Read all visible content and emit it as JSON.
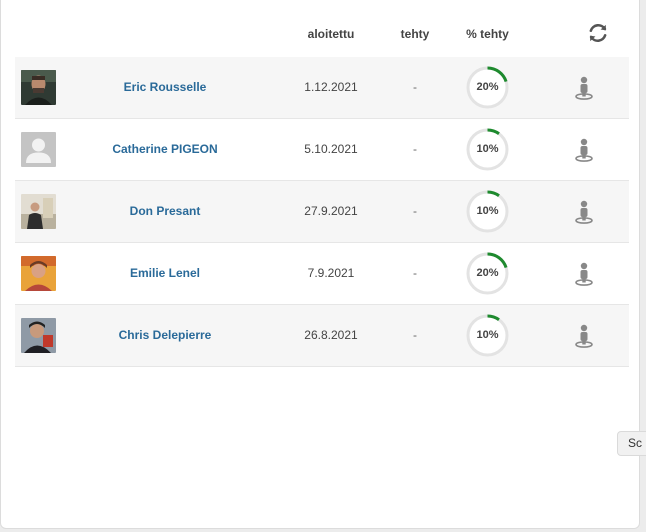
{
  "table": {
    "columns": {
      "started": "aloitettu",
      "done": "tehty",
      "percent_done": "% tehty"
    },
    "refresh_icon": "refresh-icon",
    "progress_color": "#1e8a2e",
    "rows": [
      {
        "name": "Eric Rousselle",
        "started": "1.12.2021",
        "done": "-",
        "percent_label": "20%",
        "percent": 20,
        "avatar": "photo"
      },
      {
        "name": "Catherine PIGEON",
        "started": "5.10.2021",
        "done": "-",
        "percent_label": "10%",
        "percent": 10,
        "avatar": "placeholder"
      },
      {
        "name": "Don Presant",
        "started": "27.9.2021",
        "done": "-",
        "percent_label": "10%",
        "percent": 10,
        "avatar": "photo"
      },
      {
        "name": "Emilie Lenel",
        "started": "7.9.2021",
        "done": "-",
        "percent_label": "20%",
        "percent": 20,
        "avatar": "photo"
      },
      {
        "name": "Chris Delepierre",
        "started": "26.8.2021",
        "done": "-",
        "percent_label": "10%",
        "percent": 10,
        "avatar": "photo"
      }
    ]
  },
  "side_button": {
    "label": "Sc"
  }
}
